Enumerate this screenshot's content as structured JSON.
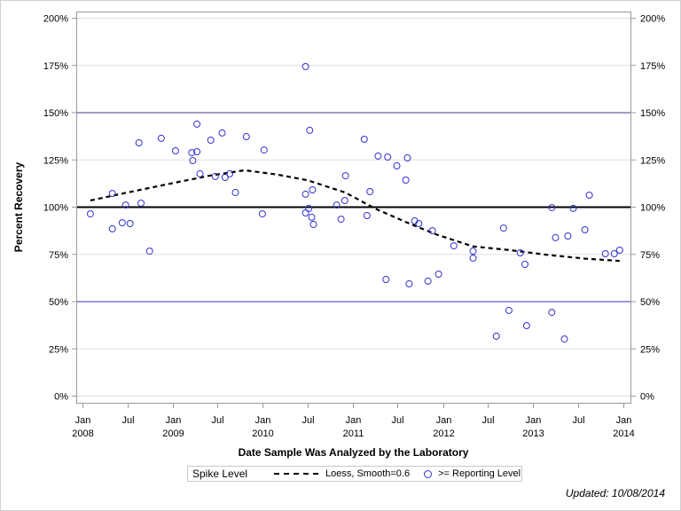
{
  "chart_data": {
    "type": "scatter",
    "xlabel": "Date Sample Was Analyzed by the Laboratory",
    "ylabel": "Percent Recovery",
    "xlim": [
      "2008-01-01",
      "2014-01-01"
    ],
    "ylim": [
      0,
      200
    ],
    "x_ticks": [
      {
        "date": "2008-01-01",
        "label": [
          "Jan",
          "2008"
        ]
      },
      {
        "date": "2008-07-01",
        "label": [
          "Jul",
          ""
        ]
      },
      {
        "date": "2009-01-01",
        "label": [
          "Jan",
          "2009"
        ]
      },
      {
        "date": "2009-07-01",
        "label": [
          "Jul",
          ""
        ]
      },
      {
        "date": "2010-01-01",
        "label": [
          "Jan",
          "2010"
        ]
      },
      {
        "date": "2010-07-01",
        "label": [
          "Jul",
          ""
        ]
      },
      {
        "date": "2011-01-01",
        "label": [
          "Jan",
          "2011"
        ]
      },
      {
        "date": "2011-07-01",
        "label": [
          "Jul",
          ""
        ]
      },
      {
        "date": "2012-01-01",
        "label": [
          "Jan",
          "2012"
        ]
      },
      {
        "date": "2012-07-01",
        "label": [
          "Jul",
          ""
        ]
      },
      {
        "date": "2013-01-01",
        "label": [
          "Jan",
          "2013"
        ]
      },
      {
        "date": "2013-07-01",
        "label": [
          "Jul",
          ""
        ]
      },
      {
        "date": "2014-01-01",
        "label": [
          "Jan",
          "2014"
        ]
      }
    ],
    "y_ticks": [
      0,
      25,
      50,
      75,
      100,
      125,
      150,
      175,
      200
    ],
    "y_tick_labels": [
      "0%",
      "25%",
      "50%",
      "75%",
      "100%",
      "125%",
      "150%",
      "175%",
      "200%"
    ],
    "grid": true,
    "reference_lines": [
      {
        "y": 150,
        "color": "#3a3a8c"
      },
      {
        "y": 100,
        "color": "#000000"
      },
      {
        "y": 50,
        "color": "#3333cc"
      }
    ],
    "series": [
      {
        "name": ">= Reporting Level",
        "kind": "scatter",
        "color": "#3333cc",
        "points": [
          [
            "2008-02-02",
            96.2
          ],
          [
            "2008-05-01",
            107.0
          ],
          [
            "2008-05-01",
            88.3
          ],
          [
            "2008-06-10",
            91.5
          ],
          [
            "2008-06-24",
            100.9
          ],
          [
            "2008-07-12",
            91.1
          ],
          [
            "2008-08-17",
            133.8
          ],
          [
            "2008-08-25",
            101.9
          ],
          [
            "2008-09-29",
            76.5
          ],
          [
            "2008-11-15",
            136.2
          ],
          [
            "2009-01-12",
            129.6
          ],
          [
            "2009-03-19",
            128.6
          ],
          [
            "2009-03-23",
            124.4
          ],
          [
            "2009-04-09",
            143.7
          ],
          [
            "2009-04-09",
            129.1
          ],
          [
            "2009-04-21",
            117.4
          ],
          [
            "2009-06-04",
            135.2
          ],
          [
            "2009-06-22",
            116.0
          ],
          [
            "2009-07-20",
            139.0
          ],
          [
            "2009-08-01",
            115.5
          ],
          [
            "2009-08-20",
            117.4
          ],
          [
            "2009-09-12",
            107.5
          ],
          [
            "2009-10-26",
            137.1
          ],
          [
            "2009-12-30",
            96.2
          ],
          [
            "2010-01-06",
            130.0
          ],
          [
            "2010-06-23",
            174.2
          ],
          [
            "2010-06-23",
            106.6
          ],
          [
            "2010-06-23",
            96.7
          ],
          [
            "2010-07-06",
            99.1
          ],
          [
            "2010-07-10",
            140.4
          ],
          [
            "2010-07-18",
            94.4
          ],
          [
            "2010-07-21",
            108.9
          ],
          [
            "2010-07-25",
            90.6
          ],
          [
            "2010-10-27",
            100.9
          ],
          [
            "2010-11-14",
            93.4
          ],
          [
            "2010-11-29",
            103.3
          ],
          [
            "2010-12-02",
            116.4
          ],
          [
            "2011-02-16",
            135.7
          ],
          [
            "2011-02-27",
            95.3
          ],
          [
            "2011-03-11",
            108.0
          ],
          [
            "2011-04-13",
            126.8
          ],
          [
            "2011-05-15",
            61.5
          ],
          [
            "2011-05-22",
            126.3
          ],
          [
            "2011-06-28",
            121.6
          ],
          [
            "2011-08-03",
            114.1
          ],
          [
            "2011-08-10",
            125.8
          ],
          [
            "2011-08-17",
            59.2
          ],
          [
            "2011-09-08",
            92.5
          ],
          [
            "2011-09-25",
            91.1
          ],
          [
            "2011-11-01",
            60.6
          ],
          [
            "2011-11-19",
            87.3
          ],
          [
            "2011-12-14",
            64.3
          ],
          [
            "2012-02-14",
            79.3
          ],
          [
            "2012-05-02",
            76.5
          ],
          [
            "2012-05-02",
            72.8
          ],
          [
            "2012-08-04",
            31.5
          ],
          [
            "2012-09-02",
            88.7
          ],
          [
            "2012-09-24",
            45.1
          ],
          [
            "2012-11-09",
            75.6
          ],
          [
            "2012-11-28",
            69.5
          ],
          [
            "2012-12-05",
            37.1
          ],
          [
            "2013-03-17",
            44.1
          ],
          [
            "2013-03-17",
            99.5
          ],
          [
            "2013-04-01",
            83.6
          ],
          [
            "2013-05-07",
            30.0
          ],
          [
            "2013-05-21",
            84.5
          ],
          [
            "2013-06-12",
            99.1
          ],
          [
            "2013-07-29",
            87.8
          ],
          [
            "2013-08-16",
            106.1
          ],
          [
            "2013-10-20",
            75.1
          ],
          [
            "2013-11-25",
            75.1
          ],
          [
            "2013-12-17",
            77.0
          ]
        ]
      },
      {
        "name": "Loess, Smooth=0.6",
        "kind": "line",
        "color": "#000000",
        "dash": true,
        "points": [
          [
            "2008-02-02",
            103.3
          ],
          [
            "2008-07-01",
            107.5
          ],
          [
            "2009-01-01",
            112.5
          ],
          [
            "2009-06-01",
            116.5
          ],
          [
            "2009-10-20",
            119.3
          ],
          [
            "2010-03-01",
            117.0
          ],
          [
            "2010-07-01",
            114.0
          ],
          [
            "2010-12-01",
            107.5
          ],
          [
            "2011-04-01",
            99.0
          ],
          [
            "2011-08-01",
            92.0
          ],
          [
            "2011-12-01",
            85.5
          ],
          [
            "2012-05-01",
            79.0
          ],
          [
            "2012-10-01",
            77.0
          ],
          [
            "2013-03-01",
            74.5
          ],
          [
            "2013-08-01",
            72.5
          ],
          [
            "2013-12-17",
            71.3
          ]
        ]
      }
    ],
    "legend": {
      "title": "Spike Level",
      "placement": "bottom",
      "entries": [
        "Loess, Smooth=0.6",
        ">= Reporting Level"
      ]
    }
  },
  "footer": {
    "updated": "Updated: 10/08/2014"
  }
}
